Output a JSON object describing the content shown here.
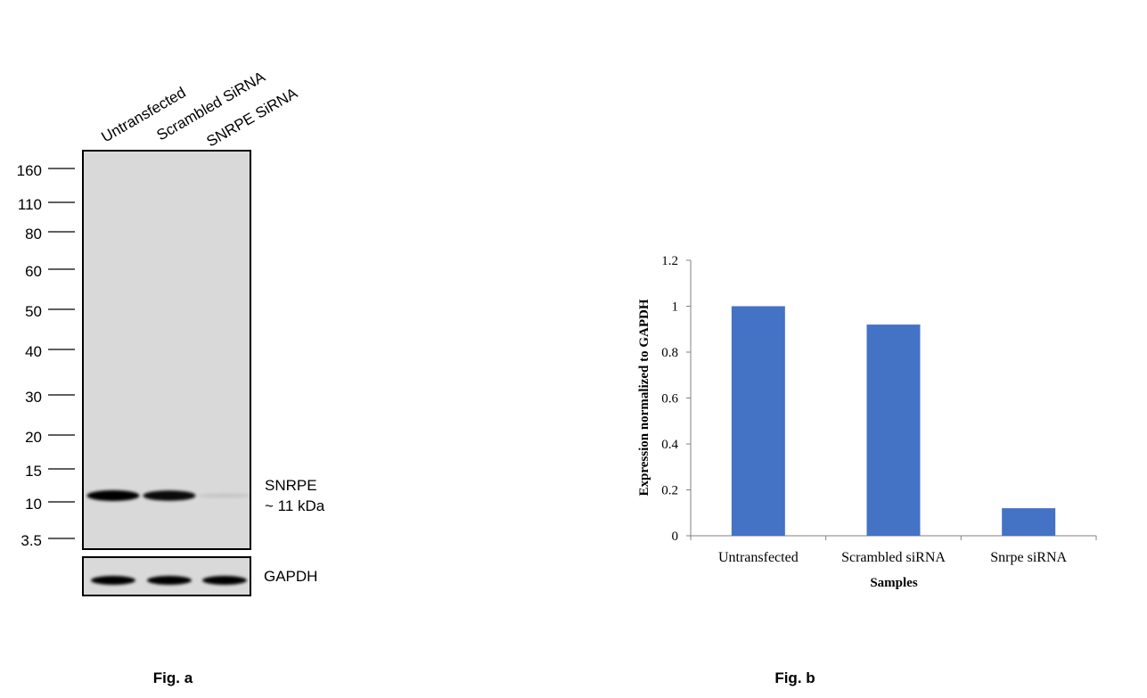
{
  "fig_a": {
    "caption": "Fig. a",
    "lanes": [
      "Untransfected",
      "Scrambled SiRNA",
      "SNRPE SiRNA"
    ],
    "mw_markers": [
      "160",
      "110",
      "80",
      "60",
      "50",
      "40",
      "30",
      "20",
      "15",
      "10",
      "3.5"
    ],
    "band_label": "SNRPE",
    "band_size": "~ 11 kDa",
    "loading_control": "GAPDH",
    "target_band_intensity": [
      1.0,
      0.95,
      0.08
    ],
    "loading_band_intensity": [
      1.0,
      1.0,
      1.0
    ]
  },
  "fig_b": {
    "caption": "Fig. b"
  },
  "chart_data": {
    "type": "bar",
    "categories": [
      "Untransfected",
      "Scrambled siRNA",
      "Snrpe siRNA"
    ],
    "values": [
      1.0,
      0.92,
      0.12
    ],
    "xlabel": "Samples",
    "ylabel": "Expression normalized to GAPDH",
    "ylim": [
      0,
      1.2
    ],
    "yticks": [
      "0",
      "0.2",
      "0.4",
      "0.6",
      "0.8",
      "1",
      "1.2"
    ],
    "bar_color": "#4472C4",
    "grid": false
  }
}
